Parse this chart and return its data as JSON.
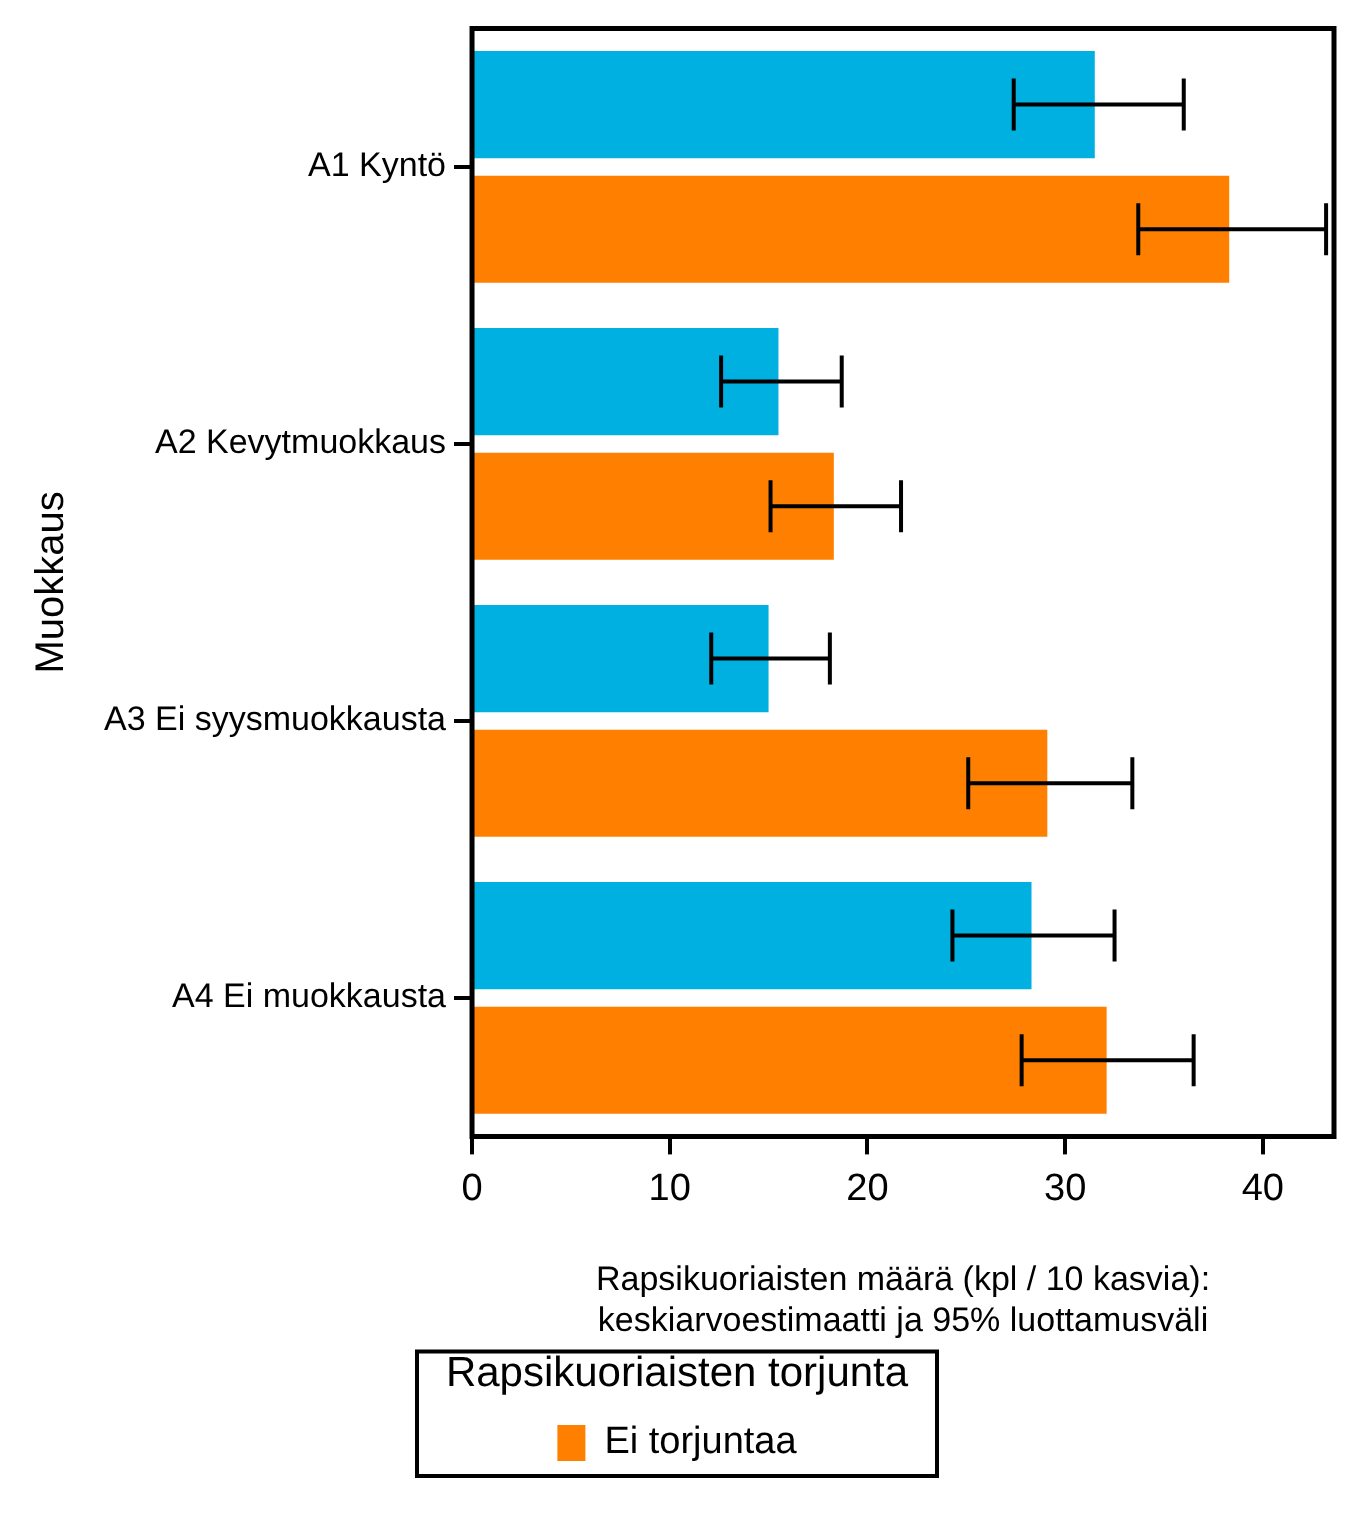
{
  "chart_data": {
    "type": "bar",
    "orientation": "horizontal",
    "categories": [
      "A1 Kyntö",
      "A2 Kevytmuokkaus",
      "A3 Ei syysmuokkausta",
      "A4 Ei muokkausta"
    ],
    "series": [
      {
        "name": "Ei torjuntaa",
        "color": "#ff8000",
        "values": [
          38.3,
          18.3,
          29.1,
          32.1
        ],
        "errors": [
          [
            33.7,
            43.2
          ],
          [
            15.1,
            21.7
          ],
          [
            25.1,
            33.4
          ],
          [
            27.8,
            36.5
          ]
        ]
      },
      {
        "color": "#00b0e0",
        "values": [
          31.5,
          15.5,
          15.0,
          28.3
        ],
        "errors": [
          [
            27.4,
            36.0
          ],
          [
            12.6,
            18.7
          ],
          [
            12.1,
            18.1
          ],
          [
            24.3,
            32.5
          ]
        ]
      }
    ],
    "xlabel": "Rapsikuoriaisten määrä (kpl / 10 kasvia):\nkeskiarvoestimaatti ja 95% luottamusväli",
    "ylabel": "Muokkaus",
    "legend_title": "Rapsikuoriaisten torjunta",
    "legend": "bottom",
    "xlim": [
      0,
      43.6
    ],
    "xticks": [
      0,
      10,
      20,
      30,
      40
    ],
    "grid": false
  }
}
